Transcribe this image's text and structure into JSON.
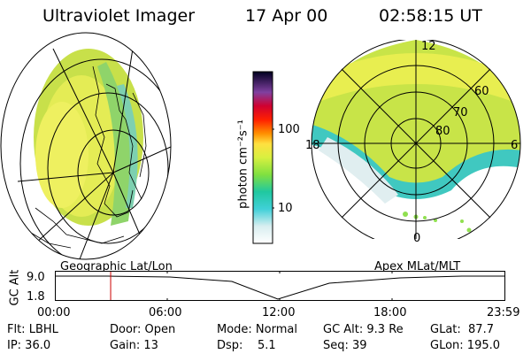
{
  "header": {
    "instrument": "Ultraviolet Imager",
    "date": "17 Apr 00",
    "time": "02:58:15 UT"
  },
  "colorbar": {
    "unit_label": "photon cm⁻²s⁻¹",
    "tick_labels": [
      "100",
      "10"
    ]
  },
  "geo_panel": {
    "label": "Geographic Lat/Lon"
  },
  "apex_panel": {
    "label": "Apex MLat/MLT",
    "mlt_labels": [
      "12",
      "18",
      "6",
      "0"
    ],
    "lat_labels": [
      "60",
      "70",
      "80"
    ]
  },
  "orbit_plot": {
    "axis_label": "GC Alt",
    "y_ticks": [
      "9.0",
      "1.8"
    ],
    "x_ticks": [
      "00:00",
      "06:00",
      "12:00",
      "18:00",
      "23:59"
    ],
    "marker_time_hours": 2.97
  },
  "info": {
    "flt": "Flt: LBHL",
    "ip": "IP: 36.0",
    "door": "Door: Open",
    "gain": "Gain: 13",
    "mode": "Mode: Normal",
    "dsp": "Dsp:    5.1",
    "gc_alt": "GC Alt: 9.3 Re",
    "seq": "Seq: 39",
    "glat": "GLat:  87.7",
    "glon": "GLon: 195.0"
  }
}
